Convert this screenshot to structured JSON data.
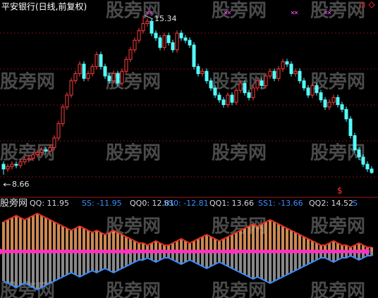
{
  "chart_data": {
    "type": "candlestick",
    "title": "平安银行(日线,前复权)",
    "watermark": "股旁网",
    "signal": "$",
    "up_color": "#ff3c3c",
    "down_color": "#54fcfc",
    "open": [
      9.1,
      8.9,
      9.0,
      9.1,
      9.05,
      9.2,
      9.3,
      9.35,
      9.5,
      9.6,
      9.7,
      9.65,
      9.8,
      10.2,
      10.8,
      11.5,
      12.0,
      12.6,
      12.9,
      13.3,
      12.7,
      12.9,
      13.2,
      13.7,
      13.2,
      12.8,
      12.6,
      12.9,
      12.5,
      13.0,
      13.5,
      13.9,
      14.3,
      14.7,
      15.0,
      15.1,
      14.6,
      14.4,
      14.0,
      14.5,
      14.2,
      13.9,
      14.6,
      14.4,
      14.3,
      14.1,
      13.2,
      12.9,
      13.0,
      12.6,
      12.3,
      12.0,
      11.8,
      11.6,
      12.0,
      11.7,
      12.2,
      12.5,
      12.1,
      11.9,
      12.3,
      12.6,
      12.4,
      12.8,
      13.0,
      12.7,
      13.1,
      13.4,
      13.3,
      12.9,
      13.0,
      12.6,
      12.3,
      12.0,
      12.4,
      12.1,
      11.8,
      11.5,
      11.7,
      11.9,
      11.6,
      11.4,
      11.0,
      10.3,
      9.7,
      9.4,
      9.1,
      8.9
    ],
    "close": [
      8.9,
      9.0,
      9.1,
      9.05,
      9.2,
      9.3,
      9.35,
      9.5,
      9.6,
      9.7,
      9.65,
      9.8,
      10.2,
      10.8,
      11.5,
      12.0,
      12.6,
      12.9,
      13.3,
      12.7,
      12.9,
      13.2,
      13.7,
      13.2,
      12.8,
      12.6,
      12.9,
      12.5,
      13.0,
      13.5,
      13.9,
      14.3,
      14.7,
      15.0,
      15.1,
      14.6,
      14.4,
      14.0,
      14.5,
      14.2,
      13.9,
      14.6,
      14.4,
      14.3,
      14.1,
      13.2,
      12.9,
      13.0,
      12.6,
      12.3,
      12.0,
      11.8,
      11.6,
      12.0,
      11.7,
      12.2,
      12.5,
      12.1,
      11.9,
      12.3,
      12.6,
      12.4,
      12.8,
      13.0,
      12.7,
      13.1,
      13.4,
      13.3,
      12.9,
      13.0,
      12.6,
      12.3,
      12.0,
      12.4,
      12.1,
      11.8,
      11.5,
      11.7,
      11.9,
      11.6,
      11.4,
      11.0,
      10.3,
      9.7,
      9.4,
      9.1,
      8.9,
      8.75
    ],
    "high": [
      9.22,
      9.12,
      9.22,
      9.22,
      9.32,
      9.42,
      9.47,
      9.62,
      9.72,
      9.82,
      9.82,
      9.92,
      10.32,
      10.92,
      11.62,
      12.12,
      12.72,
      13.02,
      13.42,
      13.42,
      13.02,
      13.32,
      13.82,
      13.82,
      13.32,
      12.92,
      13.02,
      13.02,
      13.12,
      13.62,
      14.02,
      14.42,
      14.82,
      15.34,
      15.22,
      15.22,
      14.72,
      14.52,
      14.62,
      14.62,
      14.32,
      14.72,
      14.72,
      14.52,
      14.42,
      14.22,
      13.32,
      13.12,
      13.12,
      12.72,
      12.42,
      12.12,
      11.92,
      12.12,
      12.12,
      12.32,
      12.62,
      12.62,
      12.22,
      12.42,
      12.72,
      12.72,
      12.92,
      13.12,
      13.12,
      13.22,
      13.52,
      13.52,
      13.42,
      13.12,
      13.12,
      12.72,
      12.42,
      12.52,
      12.52,
      12.22,
      11.92,
      11.82,
      12.02,
      12.02,
      11.72,
      11.52,
      11.12,
      10.42,
      9.82,
      9.52,
      9.22,
      9.02
    ],
    "low": [
      8.66,
      8.78,
      8.88,
      8.93,
      8.93,
      9.08,
      9.18,
      9.23,
      9.38,
      9.48,
      9.53,
      9.53,
      9.68,
      10.08,
      10.68,
      11.38,
      11.88,
      12.48,
      12.78,
      12.58,
      12.58,
      12.78,
      13.08,
      13.08,
      12.68,
      12.48,
      12.48,
      12.38,
      12.38,
      12.88,
      13.38,
      13.78,
      14.18,
      14.58,
      14.88,
      14.48,
      14.28,
      13.88,
      13.88,
      14.08,
      13.78,
      13.78,
      14.28,
      14.18,
      13.98,
      13.08,
      12.78,
      12.78,
      12.48,
      12.18,
      11.88,
      11.68,
      11.48,
      11.48,
      11.58,
      11.58,
      12.08,
      11.98,
      11.78,
      11.78,
      12.18,
      12.28,
      12.28,
      12.68,
      12.58,
      12.58,
      12.98,
      13.18,
      12.78,
      12.78,
      12.48,
      12.18,
      11.88,
      11.88,
      11.98,
      11.68,
      11.38,
      11.38,
      11.58,
      11.48,
      11.28,
      10.88,
      10.18,
      9.58,
      9.28,
      8.98,
      8.78,
      8.7
    ],
    "indicator": {
      "type": "bar",
      "labels": [
        {
          "text": "QQ: 11.95",
          "color": "#d8d8d8"
        },
        {
          "text": "SS: -11.95",
          "color": "#3c8cff"
        },
        {
          "text": "QQ0: 12.81",
          "color": "#d8d8d8"
        },
        {
          "text": "SS0: -12.81",
          "color": "#3c8cff"
        },
        {
          "text": "QQ1: 13.66",
          "color": "#d8d8d8"
        },
        {
          "text": "SS1: -13.66",
          "color": "#3c8cff"
        },
        {
          "text": "QQ2: 14.52",
          "color": "#d8d8d8"
        },
        {
          "text": "S",
          "color": "#3c8cff"
        }
      ],
      "series": [
        {
          "color": "#f0a060",
          "values": [
            14,
            15,
            16,
            17,
            16,
            15,
            16,
            17,
            18,
            17,
            16,
            15,
            14,
            13,
            12,
            11,
            10,
            11,
            12,
            11,
            10,
            9,
            10,
            9,
            8,
            9,
            10,
            9,
            8,
            7,
            6,
            5,
            4,
            4,
            3,
            4,
            5,
            4,
            3,
            3,
            4,
            5,
            6,
            5,
            4,
            5,
            6,
            7,
            8,
            7,
            6,
            5,
            6,
            7,
            8,
            9,
            10,
            11,
            12,
            13,
            12,
            13,
            14,
            15,
            14,
            13,
            12,
            11,
            10,
            9,
            8,
            7,
            6,
            5,
            4,
            3,
            3,
            4,
            5,
            4,
            3,
            3,
            2,
            3,
            4,
            3,
            2,
            2
          ]
        },
        {
          "color": "#a0a0a0",
          "values": [
            -14,
            -15,
            -16,
            -17,
            -16,
            -15,
            -16,
            -17,
            -18,
            -17,
            -16,
            -15,
            -14,
            -13,
            -12,
            -11,
            -10,
            -11,
            -12,
            -11,
            -10,
            -9,
            -10,
            -9,
            -8,
            -9,
            -10,
            -9,
            -8,
            -7,
            -6,
            -5,
            -4,
            -4,
            -3,
            -4,
            -5,
            -4,
            -3,
            -3,
            -4,
            -5,
            -6,
            -5,
            -4,
            -5,
            -6,
            -7,
            -8,
            -7,
            -6,
            -5,
            -6,
            -7,
            -8,
            -9,
            -10,
            -11,
            -12,
            -13,
            -12,
            -13,
            -14,
            -15,
            -14,
            -13,
            -12,
            -11,
            -10,
            -9,
            -8,
            -7,
            -6,
            -5,
            -4,
            -3,
            -3,
            -4,
            -5,
            -4,
            -3,
            -3,
            -2,
            -3,
            -4,
            -3,
            -2,
            -2
          ]
        }
      ]
    }
  }
}
